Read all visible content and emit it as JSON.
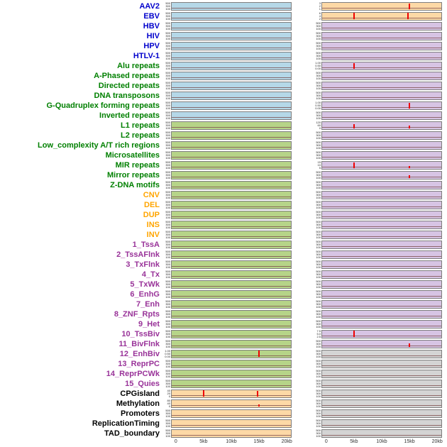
{
  "chart_data": {
    "type": "area",
    "title": "",
    "x_axis": {
      "ticks": [
        "0",
        "5kb",
        "10kb",
        "15kb",
        "20kb"
      ],
      "fractions": [
        0.04,
        0.27,
        0.5,
        0.73,
        0.96
      ]
    },
    "default_yticks": [
      "500",
      "300",
      "100"
    ],
    "colors": {
      "panel": {
        "blue": "#b5d8e8",
        "green": "#b6d488",
        "orange": "#fdd9a6",
        "purple": "#d7c4e4",
        "gray": "#d4d4d4"
      },
      "label": {
        "virus": "#0000cc",
        "repeat": "#008000",
        "sv": "#ffa500",
        "state": "#993399",
        "misc": "#000000"
      },
      "spike": "#ee0000",
      "baseline": "rgba(120,70,70,0.75)",
      "border": "#7f7f7f",
      "axis_text": "#333333"
    },
    "rows": [
      {
        "label": "AAV2",
        "group": "virus",
        "left": {
          "fill": "blue",
          "spikes": []
        },
        "right": {
          "fill": "orange",
          "yticks": [
            "3",
            "2",
            "1"
          ],
          "spikes": [
            {
              "x": 0.73,
              "h": 0.8
            }
          ]
        }
      },
      {
        "label": "EBV",
        "group": "virus",
        "left": {
          "fill": "blue",
          "spikes": []
        },
        "right": {
          "fill": "orange",
          "yticks": [
            "6",
            "4",
            "2"
          ],
          "spikes": [
            {
              "x": 0.27,
              "h": 0.95
            },
            {
              "x": 0.72,
              "h": 0.95
            }
          ]
        }
      },
      {
        "label": "HBV",
        "group": "virus",
        "left": {
          "fill": "blue",
          "spikes": []
        },
        "right": {
          "fill": "purple",
          "spikes": []
        }
      },
      {
        "label": "HIV",
        "group": "virus",
        "left": {
          "fill": "blue",
          "spikes": []
        },
        "right": {
          "fill": "purple",
          "spikes": []
        }
      },
      {
        "label": "HPV",
        "group": "virus",
        "left": {
          "fill": "blue",
          "spikes": []
        },
        "right": {
          "fill": "purple",
          "spikes": []
        }
      },
      {
        "label": "HTLV-1",
        "group": "virus",
        "left": {
          "fill": "blue",
          "spikes": []
        },
        "right": {
          "fill": "purple",
          "spikes": []
        }
      },
      {
        "label": "Alu repeats",
        "group": "repeat",
        "left": {
          "fill": "blue",
          "spikes": []
        },
        "right": {
          "fill": "purple",
          "yticks": [
            "1.00",
            "0.50",
            "0.00"
          ],
          "spikes": [
            {
              "x": 0.27,
              "h": 0.8
            }
          ]
        }
      },
      {
        "label": "A-Phased repeats",
        "group": "repeat",
        "left": {
          "fill": "blue",
          "spikes": []
        },
        "right": {
          "fill": "purple",
          "spikes": []
        }
      },
      {
        "label": "Directed repeats",
        "group": "repeat",
        "left": {
          "fill": "blue",
          "spikes": []
        },
        "right": {
          "fill": "purple",
          "spikes": []
        }
      },
      {
        "label": "DNA transposons",
        "group": "repeat",
        "left": {
          "fill": "blue",
          "spikes": []
        },
        "right": {
          "fill": "purple",
          "spikes": []
        }
      },
      {
        "label": "G-Quadruplex forming repeats",
        "group": "repeat",
        "left": {
          "fill": "blue",
          "spikes": []
        },
        "right": {
          "fill": "purple",
          "yticks": [
            "1.00",
            "0.50",
            "0.00"
          ],
          "spikes": [
            {
              "x": 0.73,
              "h": 0.85
            }
          ]
        }
      },
      {
        "label": "Inverted repeats",
        "group": "repeat",
        "left": {
          "fill": "blue",
          "spikes": []
        },
        "right": {
          "fill": "purple",
          "spikes": []
        }
      },
      {
        "label": "L1 repeats",
        "group": "repeat",
        "left": {
          "fill": "green",
          "spikes": []
        },
        "right": {
          "fill": "purple",
          "yticks": [
            "120",
            "60",
            "0"
          ],
          "spikes": [
            {
              "x": 0.27,
              "h": 0.6
            },
            {
              "x": 0.73,
              "h": 0.35
            }
          ]
        }
      },
      {
        "label": "L2 repeats",
        "group": "repeat",
        "left": {
          "fill": "green",
          "spikes": []
        },
        "right": {
          "fill": "purple",
          "spikes": []
        }
      },
      {
        "label": "Low_complexity A/T rich regions",
        "group": "repeat",
        "left": {
          "fill": "green",
          "spikes": []
        },
        "right": {
          "fill": "purple",
          "spikes": []
        }
      },
      {
        "label": "Microsatellites",
        "group": "repeat",
        "left": {
          "fill": "green",
          "spikes": []
        },
        "right": {
          "fill": "purple",
          "spikes": []
        }
      },
      {
        "label": "MIR repeats",
        "group": "repeat",
        "left": {
          "fill": "green",
          "spikes": []
        },
        "right": {
          "fill": "purple",
          "yticks": [
            "15",
            "10",
            "5"
          ],
          "spikes": [
            {
              "x": 0.27,
              "h": 0.8
            },
            {
              "x": 0.73,
              "h": 0.3
            }
          ]
        }
      },
      {
        "label": "Mirror repeats",
        "group": "repeat",
        "left": {
          "fill": "green",
          "spikes": []
        },
        "right": {
          "fill": "purple",
          "spikes": [
            {
              "x": 0.73,
              "h": 0.4
            }
          ]
        }
      },
      {
        "label": "Z-DNA motifs",
        "group": "repeat",
        "left": {
          "fill": "green",
          "spikes": []
        },
        "right": {
          "fill": "purple",
          "spikes": []
        }
      },
      {
        "label": "CNV",
        "group": "sv",
        "left": {
          "fill": "green",
          "spikes": []
        },
        "right": {
          "fill": "purple",
          "spikes": []
        }
      },
      {
        "label": "DEL",
        "group": "sv",
        "left": {
          "fill": "green",
          "spikes": []
        },
        "right": {
          "fill": "purple",
          "spikes": []
        }
      },
      {
        "label": "DUP",
        "group": "sv",
        "left": {
          "fill": "green",
          "spikes": []
        },
        "right": {
          "fill": "purple",
          "spikes": []
        }
      },
      {
        "label": "INS",
        "group": "sv",
        "left": {
          "fill": "green",
          "spikes": []
        },
        "right": {
          "fill": "purple",
          "spikes": []
        }
      },
      {
        "label": "INV",
        "group": "sv",
        "left": {
          "fill": "green",
          "spikes": []
        },
        "right": {
          "fill": "purple",
          "spikes": []
        }
      },
      {
        "label": "1_TssA",
        "group": "state",
        "left": {
          "fill": "green",
          "spikes": []
        },
        "right": {
          "fill": "purple",
          "spikes": []
        }
      },
      {
        "label": "2_TssAFlnk",
        "group": "state",
        "left": {
          "fill": "green",
          "spikes": []
        },
        "right": {
          "fill": "purple",
          "spikes": []
        }
      },
      {
        "label": "3_TxFlnk",
        "group": "state",
        "left": {
          "fill": "green",
          "spikes": []
        },
        "right": {
          "fill": "purple",
          "spikes": []
        }
      },
      {
        "label": "4_Tx",
        "group": "state",
        "left": {
          "fill": "green",
          "spikes": []
        },
        "right": {
          "fill": "purple",
          "spikes": []
        }
      },
      {
        "label": "5_TxWk",
        "group": "state",
        "left": {
          "fill": "green",
          "spikes": []
        },
        "right": {
          "fill": "purple",
          "spikes": []
        }
      },
      {
        "label": "6_EnhG",
        "group": "state",
        "left": {
          "fill": "green",
          "spikes": []
        },
        "right": {
          "fill": "purple",
          "spikes": []
        }
      },
      {
        "label": "7_Enh",
        "group": "state",
        "left": {
          "fill": "green",
          "spikes": []
        },
        "right": {
          "fill": "purple",
          "spikes": []
        }
      },
      {
        "label": "8_ZNF_Rpts",
        "group": "state",
        "left": {
          "fill": "green",
          "spikes": []
        },
        "right": {
          "fill": "purple",
          "spikes": []
        }
      },
      {
        "label": "9_Het",
        "group": "state",
        "left": {
          "fill": "green",
          "spikes": []
        },
        "right": {
          "fill": "purple",
          "spikes": []
        }
      },
      {
        "label": "10_TssBiv",
        "group": "state",
        "left": {
          "fill": "green",
          "spikes": []
        },
        "right": {
          "fill": "purple",
          "yticks": [
            "7.5",
            "5.0",
            "2.5"
          ],
          "spikes": [
            {
              "x": 0.27,
              "h": 0.9
            }
          ]
        }
      },
      {
        "label": "11_BivFlnk",
        "group": "state",
        "left": {
          "fill": "green",
          "spikes": []
        },
        "right": {
          "fill": "purple",
          "spikes": [
            {
              "x": 0.73,
              "h": 0.45
            }
          ]
        }
      },
      {
        "label": "12_EnhBiv",
        "group": "state",
        "left": {
          "fill": "green",
          "yticks": [
            "1.00",
            "0.50",
            "0.00"
          ],
          "spikes": [
            {
              "x": 0.73,
              "h": 0.95
            }
          ]
        },
        "right": {
          "fill": "gray",
          "spikes": []
        }
      },
      {
        "label": "13_ReprPC",
        "group": "state",
        "left": {
          "fill": "green",
          "spikes": []
        },
        "right": {
          "fill": "gray",
          "spikes": []
        }
      },
      {
        "label": "14_ReprPCWk",
        "group": "state",
        "left": {
          "fill": "green",
          "spikes": []
        },
        "right": {
          "fill": "gray",
          "spikes": []
        }
      },
      {
        "label": "15_Quies",
        "group": "state",
        "left": {
          "fill": "green",
          "spikes": []
        },
        "right": {
          "fill": "gray",
          "spikes": []
        }
      },
      {
        "label": "CPGisland",
        "group": "misc",
        "left": {
          "fill": "orange",
          "yticks": [
            "40",
            "20",
            "0"
          ],
          "spikes": [
            {
              "x": 0.27,
              "h": 0.95
            },
            {
              "x": 0.72,
              "h": 0.85
            }
          ]
        },
        "right": {
          "fill": "gray",
          "spikes": []
        }
      },
      {
        "label": "Methylation",
        "group": "misc",
        "left": {
          "fill": "orange",
          "yticks": [
            "80",
            "40",
            "0"
          ],
          "spikes": [
            {
              "x": 0.73,
              "h": 0.3
            }
          ]
        },
        "right": {
          "fill": "gray",
          "spikes": []
        }
      },
      {
        "label": "Promoters",
        "group": "misc",
        "left": {
          "fill": "orange",
          "spikes": []
        },
        "right": {
          "fill": "gray",
          "spikes": []
        }
      },
      {
        "label": "ReplicationTiming",
        "group": "misc",
        "left": {
          "fill": "orange",
          "spikes": []
        },
        "right": {
          "fill": "gray",
          "spikes": []
        }
      },
      {
        "label": "TAD_boundary",
        "group": "misc",
        "left": {
          "fill": "orange",
          "spikes": []
        },
        "right": {
          "fill": "gray",
          "spikes": []
        }
      }
    ]
  }
}
